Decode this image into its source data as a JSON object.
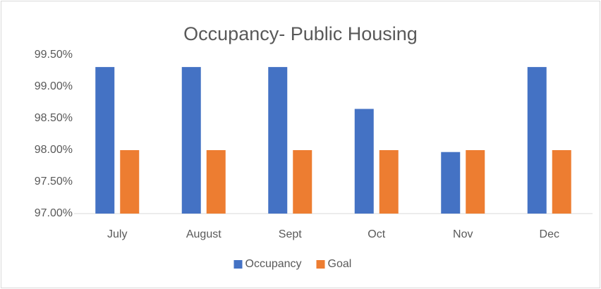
{
  "chart_data": {
    "type": "bar",
    "title": "Occupancy- Public Housing",
    "categories": [
      "July",
      "August",
      "Sept",
      "Oct",
      "Nov",
      "Dec"
    ],
    "series": [
      {
        "name": "Occupancy",
        "color": "#4472c4",
        "values": [
          99.31,
          99.31,
          99.31,
          98.65,
          97.97,
          99.31
        ]
      },
      {
        "name": "Goal",
        "color": "#ed7d31",
        "values": [
          98,
          98,
          98,
          98,
          98,
          98
        ]
      }
    ],
    "ylim": [
      97,
      99.5
    ],
    "yticks": [
      {
        "value": 97,
        "label": "97.00%"
      },
      {
        "value": 97.5,
        "label": "97.50%"
      },
      {
        "value": 98,
        "label": "98.00%"
      },
      {
        "value": 98.5,
        "label": "98.50%"
      },
      {
        "value": 99,
        "label": "99.00%"
      },
      {
        "value": 99.5,
        "label": "99.50%"
      }
    ],
    "grid": false,
    "legend": "bottom"
  }
}
